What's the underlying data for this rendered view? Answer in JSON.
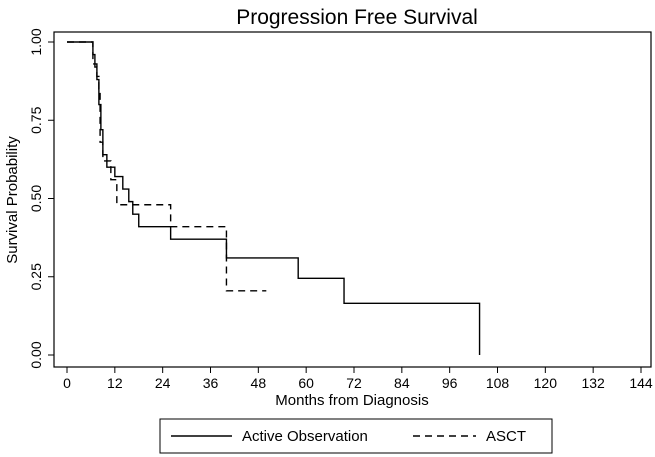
{
  "chart_data": {
    "type": "line",
    "title": "Progression Free Survival",
    "xlabel": "Months from Diagnosis",
    "ylabel": "Survival Probability",
    "xlim": [
      0,
      144
    ],
    "ylim": [
      0,
      1
    ],
    "xticks": [
      0,
      12,
      24,
      36,
      48,
      60,
      72,
      84,
      96,
      108,
      120,
      132,
      144
    ],
    "xtick_labels": [
      "0",
      "12",
      "24",
      "36",
      "48",
      "60",
      "72",
      "84",
      "96",
      "108",
      "120",
      "132",
      "144"
    ],
    "yticks": [
      0,
      0.25,
      0.5,
      0.75,
      1
    ],
    "ytick_labels": [
      "0.00",
      "0.25",
      "0.50",
      "0.75",
      "1.00"
    ],
    "grid": false,
    "step": true,
    "legend_position": "bottom",
    "series": [
      {
        "name": "Active Observation",
        "style": "solid",
        "color": "#000000",
        "points": [
          [
            0,
            1.0
          ],
          [
            6.5,
            0.96
          ],
          [
            7.0,
            0.92
          ],
          [
            7.5,
            0.88
          ],
          [
            8.0,
            0.8
          ],
          [
            8.5,
            0.72
          ],
          [
            9.0,
            0.64
          ],
          [
            10.0,
            0.6
          ],
          [
            12.0,
            0.57
          ],
          [
            14.0,
            0.53
          ],
          [
            15.5,
            0.49
          ],
          [
            16.5,
            0.45
          ],
          [
            18.0,
            0.41
          ],
          [
            26.0,
            0.37
          ],
          [
            40.0,
            0.31
          ],
          [
            58.0,
            0.245
          ],
          [
            69.5,
            0.165
          ],
          [
            103.5,
            0.165
          ],
          [
            103.5,
            0.0
          ]
        ]
      },
      {
        "name": "ASCT",
        "style": "dashed",
        "color": "#000000",
        "points": [
          [
            0,
            1.0
          ],
          [
            6.5,
            0.93
          ],
          [
            7.5,
            0.89
          ],
          [
            8.0,
            0.85
          ],
          [
            8.3,
            0.68
          ],
          [
            9.0,
            0.62
          ],
          [
            11.0,
            0.56
          ],
          [
            12.5,
            0.48
          ],
          [
            26.0,
            0.41
          ],
          [
            40.0,
            0.205
          ],
          [
            50.0,
            0.205
          ]
        ]
      }
    ]
  }
}
